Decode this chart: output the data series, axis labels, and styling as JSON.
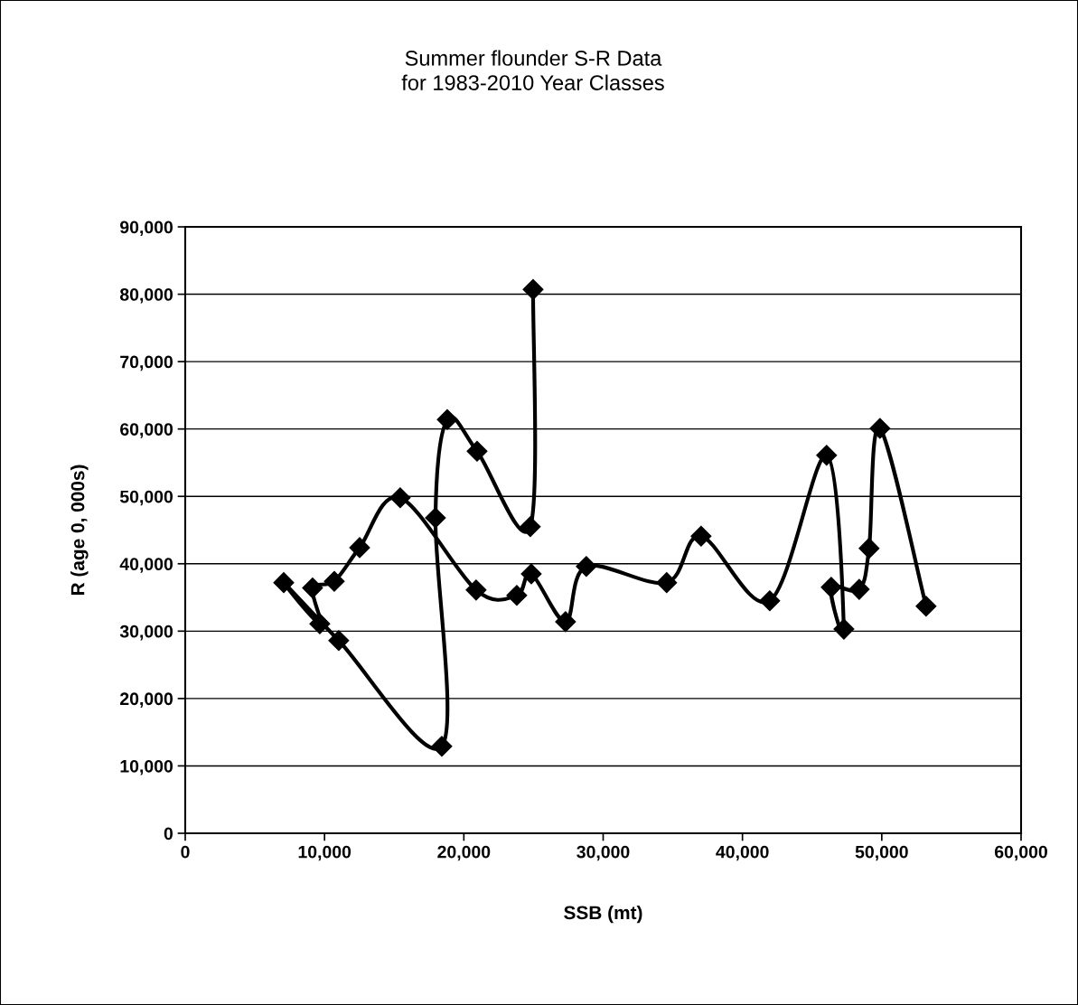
{
  "chart_data": {
    "type": "line",
    "title": "Summer flounder S-R Data\nfor 1983-2010 Year Classes",
    "xlabel": "SSB (mt)",
    "ylabel": "R (age 0, 000s)",
    "series": [
      {
        "color": "#000000",
        "x": [
          24970,
          24770,
          20950,
          18810,
          17960,
          18420,
          11020,
          7070,
          9660,
          9140,
          10700,
          12520,
          15430,
          20880,
          23800,
          24840,
          27300,
          28790,
          34560,
          37030,
          41960,
          46040,
          47280,
          46370,
          48380,
          49090,
          49870,
          53180
        ],
        "values": [
          80700,
          45500,
          56700,
          61400,
          46800,
          12900,
          28600,
          37200,
          31100,
          36400,
          37400,
          42400,
          49800,
          36100,
          35300,
          38500,
          31400,
          39600,
          37200,
          44100,
          34500,
          56100,
          30300,
          36500,
          36200,
          42300,
          60100,
          33700
        ]
      }
    ],
    "xlim": [
      0,
      60000
    ],
    "xticks": [
      {
        "value": 0,
        "label": "0"
      },
      {
        "value": 10000,
        "label": "10,000"
      },
      {
        "value": 20000,
        "label": "20,000"
      },
      {
        "value": 30000,
        "label": "30,000"
      },
      {
        "value": 40000,
        "label": "40,000"
      },
      {
        "value": 50000,
        "label": "50,000"
      },
      {
        "value": 60000,
        "label": "60,000"
      }
    ],
    "ylim": [
      0,
      90000
    ],
    "yticks": [
      {
        "value": 0,
        "label": "0"
      },
      {
        "value": 10000,
        "label": "10,000"
      },
      {
        "value": 20000,
        "label": "20,000"
      },
      {
        "value": 30000,
        "label": "30,000"
      },
      {
        "value": 40000,
        "label": "40,000"
      },
      {
        "value": 50000,
        "label": "50,000"
      },
      {
        "value": 60000,
        "label": "60,000"
      },
      {
        "value": 70000,
        "label": "70,000"
      },
      {
        "value": 80000,
        "label": "80,000"
      },
      {
        "value": 90000,
        "label": "90,000"
      }
    ],
    "grid": "y",
    "marker": "diamond",
    "line_style": "solid"
  }
}
